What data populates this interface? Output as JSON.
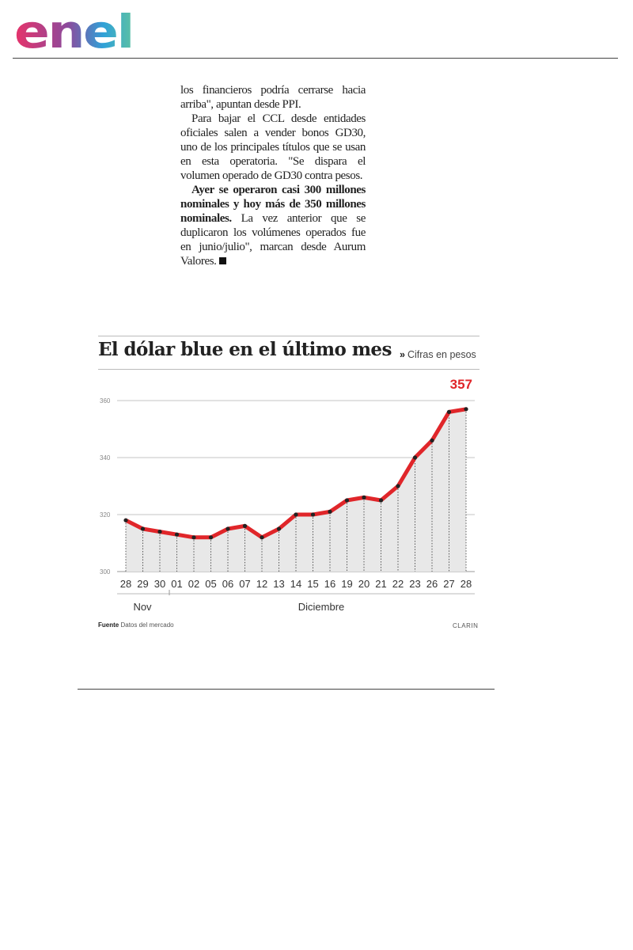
{
  "logo": {
    "text": "enel",
    "colors": [
      "#e7336a",
      "#8c4a9c",
      "#2fa1d8",
      "#5cc1a4"
    ]
  },
  "article": {
    "p1": "los financieros podría cerrarse hacia arriba\", apuntan desde PPI.",
    "p2": "Para bajar el CCL desde entidades oficiales salen a vender bonos GD30, uno de los principales títulos que se usan en esta operatoria. \"Se dispara el volumen operado de GD30 contra pesos.",
    "p3_bold": "Ayer se operaron casi 300 millones nominales y hoy más de 350 millones nominales.",
    "p3_rest": " La vez anterior que se duplicaron los volúmenes operados fue en junio/julio\", marcan desde Aurum Valores."
  },
  "chart": {
    "title": "El dólar blue en el último mes",
    "subtitle_arrow": "»",
    "subtitle": "Cifras en pesos",
    "source_label": "Fuente",
    "source_text": "Datos del mercado",
    "credit": "CLARIN"
  },
  "chart_data": {
    "type": "area",
    "title": "El dólar blue en el último mes",
    "subtitle": "Cifras en pesos",
    "categories": [
      "28",
      "29",
      "30",
      "01",
      "02",
      "05",
      "06",
      "07",
      "12",
      "13",
      "14",
      "15",
      "16",
      "19",
      "20",
      "21",
      "22",
      "23",
      "26",
      "27",
      "28"
    ],
    "x_groups": [
      {
        "label": "Nov",
        "from": 0,
        "to": 2
      },
      {
        "label": "Diciembre",
        "from": 3,
        "to": 20
      }
    ],
    "values": [
      318,
      315,
      314,
      313,
      312,
      312,
      315,
      316,
      312,
      315,
      320,
      320,
      321,
      325,
      326,
      325,
      330,
      340,
      346,
      356,
      357
    ],
    "ylim": [
      300,
      360
    ],
    "yticks": [
      300,
      320,
      340,
      360
    ],
    "annotation": {
      "index": 20,
      "label": "357"
    },
    "grid": true,
    "line_color": "#e0262a",
    "fill_color": "#e8e8e8",
    "point_color": "#222222",
    "annotation_color": "#e0262a"
  }
}
